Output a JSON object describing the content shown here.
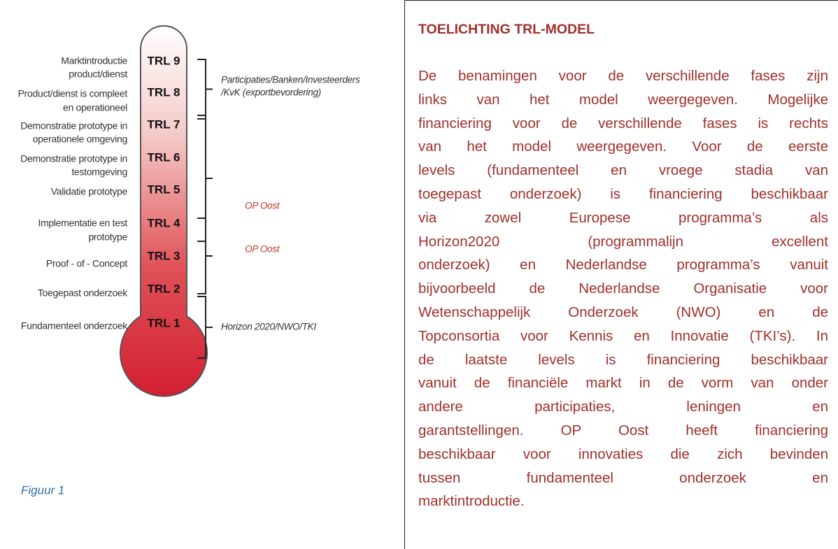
{
  "figure": {
    "levels": [
      {
        "label": "TRL 9",
        "phase": [
          "Marktintroductie",
          "product/dienst"
        ]
      },
      {
        "label": "TRL 8",
        "phase": [
          "Product/dienst is compleet",
          "en operationeel"
        ]
      },
      {
        "label": "TRL 7",
        "phase": [
          "Demonstratie prototype in",
          "operationele omgeving"
        ]
      },
      {
        "label": "TRL 6",
        "phase": [
          "Demonstratie prototype in",
          "testomgeving"
        ]
      },
      {
        "label": "TRL 5",
        "phase": [
          "Validatie prototype"
        ]
      },
      {
        "label": "TRL 4",
        "phase": [
          "Implementatie en test",
          "prototype"
        ]
      },
      {
        "label": "TRL 3",
        "phase": [
          "Proof - of - Concept"
        ]
      },
      {
        "label": "TRL 2",
        "phase": [
          "Toegepast onderzoek"
        ]
      },
      {
        "label": "TRL 1",
        "phase": [
          "Fundamenteel onderzoek"
        ]
      }
    ],
    "funding": [
      {
        "text": [
          "Participaties/Banken/Investeerders",
          "/KvK (exportbevordering)"
        ]
      },
      {
        "text": [
          "OP Oost"
        ]
      },
      {
        "text": [
          "OP Oost"
        ]
      },
      {
        "text": [
          "Horizon 2020/NWO/TKI"
        ]
      }
    ],
    "caption": "Figuur 1"
  },
  "explanation": {
    "title": "TOELICHTING TRL-MODEL",
    "lines": [
      "De benamingen voor de verschillende fases zijn",
      "links van het model weergegeven. Mogelijke",
      "financiering voor de verschillende fases is rechts",
      "van het model weergegeven. Voor de eerste",
      "levels (fundamenteel en vroege stadia van",
      "toegepast onderzoek) is financiering beschikbaar",
      "via zowel Europese programma’s als",
      "Horizon2020 (programmalijn excellent",
      "onderzoek) en Nederlandse programma’s vanuit",
      "bijvoorbeeld de Nederlandse Organisatie voor",
      "Wetenschappelijk Onderzoek (NWO) en de",
      "Topconsortia voor Kennis en Innovatie (TKI’s). In",
      "de laatste levels is financiering beschikbaar",
      "vanuit de financiële markt in de vorm van onder",
      "andere participaties, leningen en",
      "garantstellingen. OP Oost heeft financiering",
      "beschikbaar voor innovaties die zich bevinden",
      "tussen fundamenteel onderzoek en",
      "marktintroductie."
    ]
  }
}
